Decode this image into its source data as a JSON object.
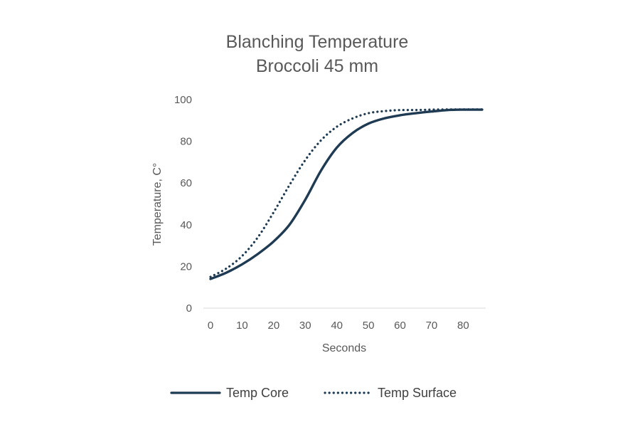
{
  "chart_data": {
    "type": "line",
    "title": "Blanching Temperature",
    "subtitle": "Broccoli 45 mm",
    "xlabel": "Seconds",
    "ylabel": "Temperature, C°",
    "xlim": [
      0,
      86
    ],
    "ylim": [
      0,
      100
    ],
    "xticks": [
      0,
      10,
      20,
      30,
      40,
      50,
      60,
      70,
      80
    ],
    "yticks": [
      0,
      20,
      40,
      60,
      80,
      100
    ],
    "grid": false,
    "legend_position": "bottom",
    "colors": {
      "line": "#1f3b53",
      "text": "#595959"
    },
    "series": [
      {
        "name": "Temp Core",
        "style": "solid",
        "x": [
          0,
          5,
          10,
          15,
          20,
          25,
          30,
          35,
          40,
          45,
          50,
          55,
          60,
          65,
          70,
          75,
          80,
          86
        ],
        "y": [
          14,
          17,
          21,
          26,
          32,
          40,
          52,
          66,
          77,
          84,
          88.5,
          91,
          92.5,
          93.5,
          94.3,
          95,
          95.2,
          95.2
        ]
      },
      {
        "name": "Temp Surface",
        "style": "dotted",
        "x": [
          0,
          5,
          10,
          15,
          20,
          25,
          30,
          35,
          40,
          45,
          50,
          55,
          60,
          65,
          70,
          75,
          80,
          86
        ],
        "y": [
          15,
          19,
          25,
          34,
          46,
          59,
          71,
          80.5,
          87,
          91,
          93.5,
          94.5,
          95,
          95,
          95.2,
          95.3,
          95.3,
          95.3
        ]
      }
    ]
  }
}
